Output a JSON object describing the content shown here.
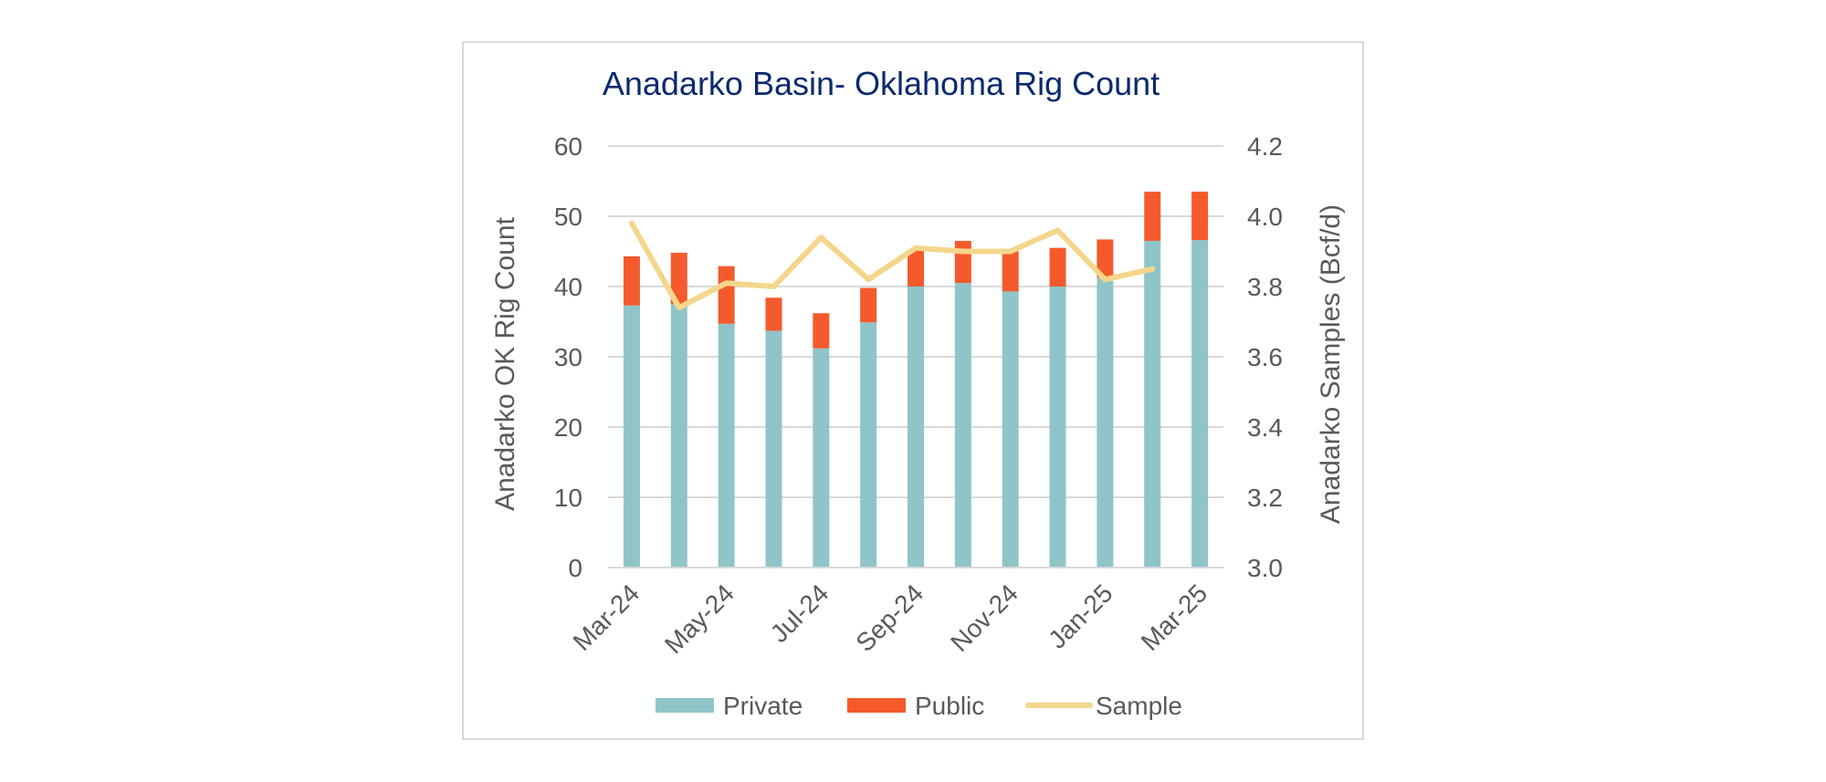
{
  "chart_data": {
    "type": "bar",
    "stacked": true,
    "title": "Anadarko Basin- Oklahoma Rig Count",
    "ylabel": "Anadarko OK Rig Count",
    "y2label": "Anadarko Samples (Bcf/d)",
    "xlabel": "",
    "ylim": [
      0,
      60
    ],
    "y2lim": [
      3.0,
      4.2
    ],
    "yticks": [
      "0",
      "10",
      "20",
      "30",
      "40",
      "50",
      "60"
    ],
    "y2ticks": [
      "3.0",
      "3.2",
      "3.4",
      "3.6",
      "3.8",
      "4.0",
      "4.2"
    ],
    "categories": [
      "Mar-24",
      "Apr-24",
      "May-24",
      "Jun-24",
      "Jul-24",
      "Aug-24",
      "Sep-24",
      "Oct-24",
      "Nov-24",
      "Dec-24",
      "Jan-25",
      "Feb-25",
      "Mar-25"
    ],
    "xtick_labels": [
      "Mar-24",
      "",
      "May-24",
      "",
      "Jul-24",
      "",
      "Sep-24",
      "",
      "Nov-24",
      "",
      "Jan-25",
      "",
      "Mar-25"
    ],
    "grid": true,
    "legend_position": "bottom",
    "series": [
      {
        "name": "Private",
        "kind": "bar",
        "axis": "left",
        "color": "#8fc5c8",
        "values": [
          37.3,
          37.5,
          34.7,
          33.7,
          31.2,
          34.9,
          40.0,
          40.5,
          39.3,
          40.0,
          41.3,
          46.5,
          46.6
        ]
      },
      {
        "name": "Public",
        "kind": "bar",
        "axis": "left",
        "color": "#f55a2c",
        "values": [
          7.0,
          7.3,
          8.2,
          4.7,
          5.0,
          4.9,
          5.1,
          6.0,
          5.7,
          5.5,
          5.4,
          7.0,
          6.9
        ]
      },
      {
        "name": "Sample",
        "kind": "line",
        "axis": "right",
        "color": "#f4d68b",
        "values": [
          3.98,
          3.74,
          3.81,
          3.8,
          3.94,
          3.82,
          3.91,
          3.9,
          3.9,
          3.96,
          3.82,
          3.85,
          null
        ]
      }
    ]
  }
}
